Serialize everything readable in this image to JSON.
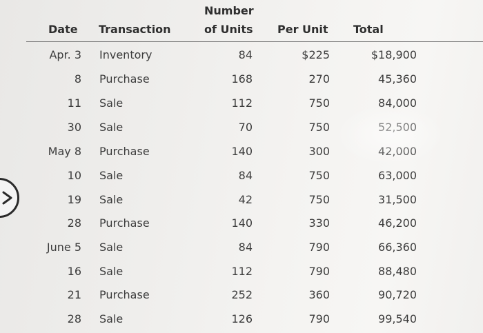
{
  "header": {
    "date": "Date",
    "transaction": "Transaction",
    "units_line1": "Number",
    "units_line2": "of Units",
    "per_unit": "Per Unit",
    "total": "Total"
  },
  "rows": [
    {
      "date": "Apr. 3",
      "transaction": "Inventory",
      "units": "84",
      "per_unit": "$225",
      "total": "$18,900"
    },
    {
      "date": "8",
      "transaction": "Purchase",
      "units": "168",
      "per_unit": "270",
      "total": "45,360"
    },
    {
      "date": "11",
      "transaction": "Sale",
      "units": "112",
      "per_unit": "750",
      "total": "84,000"
    },
    {
      "date": "30",
      "transaction": "Sale",
      "units": "70",
      "per_unit": "750",
      "total": "52,500"
    },
    {
      "date": "May 8",
      "transaction": "Purchase",
      "units": "140",
      "per_unit": "300",
      "total": "42,000"
    },
    {
      "date": "10",
      "transaction": "Sale",
      "units": "84",
      "per_unit": "750",
      "total": "63,000"
    },
    {
      "date": "19",
      "transaction": "Sale",
      "units": "42",
      "per_unit": "750",
      "total": "31,500"
    },
    {
      "date": "28",
      "transaction": "Purchase",
      "units": "140",
      "per_unit": "330",
      "total": "46,200"
    },
    {
      "date": "June 5",
      "transaction": "Sale",
      "units": "84",
      "per_unit": "790",
      "total": "66,360"
    },
    {
      "date": "16",
      "transaction": "Sale",
      "units": "112",
      "per_unit": "790",
      "total": "88,480"
    },
    {
      "date": "21",
      "transaction": "Purchase",
      "units": "252",
      "per_unit": "360",
      "total": "90,720"
    },
    {
      "date": "28",
      "transaction": "Sale",
      "units": "126",
      "per_unit": "790",
      "total": "99,540"
    }
  ],
  "nav": {
    "icon": "chevron-right-icon"
  }
}
